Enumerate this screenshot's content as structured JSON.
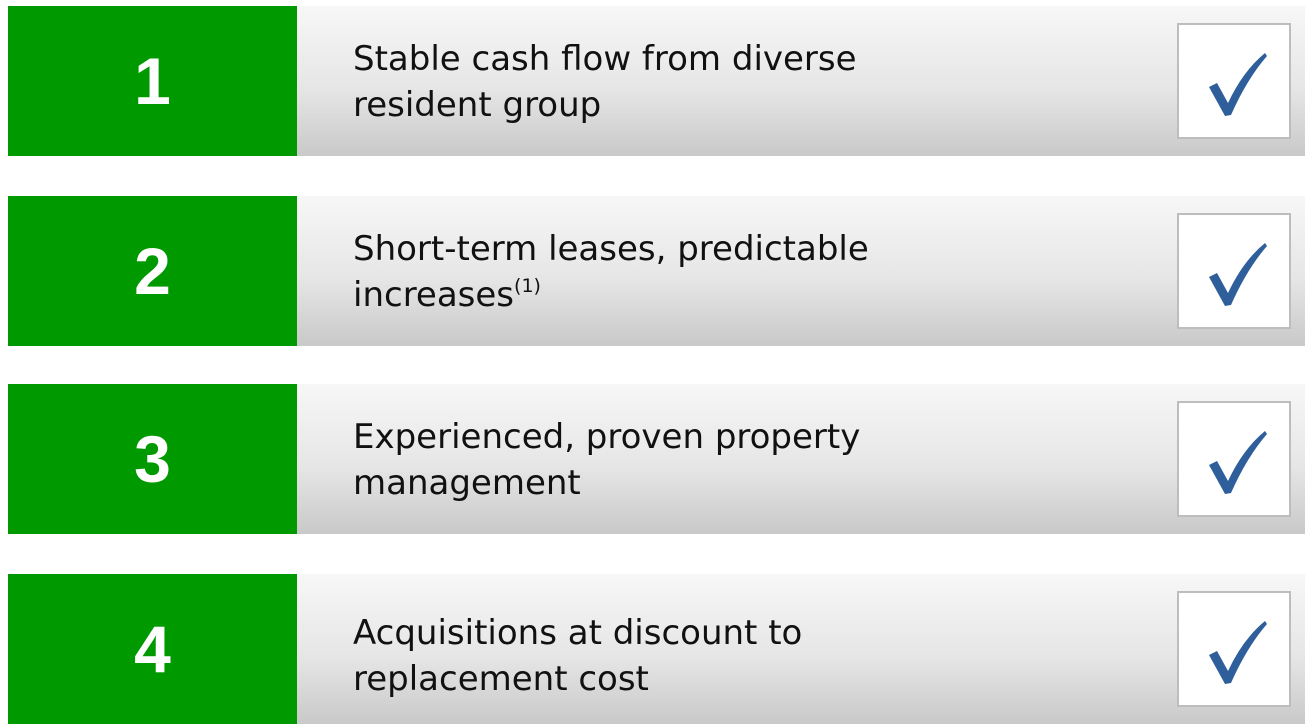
{
  "items": [
    {
      "number": "1",
      "lines": [
        "Stable cash flow from diverse",
        "resident group"
      ]
    },
    {
      "number": "2",
      "lines": [
        "Short-term leases, predictable",
        "increases"
      ],
      "footnote": "(1)"
    },
    {
      "number": "3",
      "lines": [
        "Experienced, proven property",
        "management"
      ]
    },
    {
      "number": "4",
      "lines": [
        "Acquisitions at discount to",
        "replacement cost"
      ]
    }
  ]
}
